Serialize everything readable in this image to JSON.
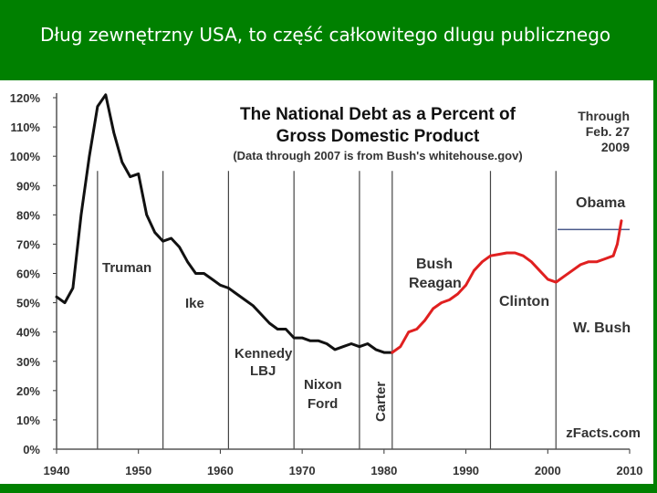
{
  "slide": {
    "title": "Dług zewnętrzny USA, to część całkowitego dlugu publicznego"
  },
  "colors": {
    "background": "#008000",
    "black_series": "#111111",
    "red_series": "#e02020",
    "obama_line": "#4a5a8a"
  },
  "chart_data": {
    "type": "line",
    "title": "The National Debt as a Percent of Gross Domestic Product",
    "subtitle": "(Data through 2007 is from Bush's whitehouse.gov)",
    "through_note": "Through Feb. 27 2009",
    "source": "zFacts.com",
    "xlim": [
      1940,
      2010
    ],
    "ylim": [
      0,
      120
    ],
    "x_ticks": [
      "1940",
      "1950",
      "1960",
      "1970",
      "1980",
      "1990",
      "2000",
      "2010"
    ],
    "y_ticks": [
      "0%",
      "10%",
      "20%",
      "30%",
      "40%",
      "50%",
      "60%",
      "70%",
      "80%",
      "90%",
      "100%",
      "110%",
      "120%"
    ],
    "grid": false,
    "series": [
      {
        "color": "#111111",
        "x": [
          1940,
          1941,
          1942,
          1943,
          1944,
          1945,
          1946,
          1947,
          1948,
          1949,
          1950,
          1951,
          1952,
          1953,
          1954,
          1955,
          1956,
          1957,
          1958,
          1959,
          1960,
          1961,
          1962,
          1963,
          1964,
          1965,
          1966,
          1967,
          1968,
          1969,
          1970,
          1971,
          1972,
          1973,
          1974,
          1975,
          1976,
          1977,
          1978,
          1979,
          1980,
          1981
        ],
        "values": [
          52,
          50,
          55,
          80,
          100,
          117,
          121,
          108,
          98,
          93,
          94,
          80,
          74,
          71,
          72,
          69,
          64,
          60,
          60,
          58,
          56,
          55,
          53,
          51,
          49,
          46,
          43,
          41,
          41,
          38,
          38,
          37,
          37,
          36,
          34,
          35,
          36,
          35,
          36,
          34,
          33,
          33
        ]
      },
      {
        "color": "#e02020",
        "x": [
          1981,
          1982,
          1983,
          1984,
          1985,
          1986,
          1987,
          1988,
          1989,
          1990,
          1991,
          1992,
          1993,
          1994,
          1995,
          1996,
          1997,
          1998,
          1999,
          2000,
          2001,
          2002,
          2003,
          2004,
          2005,
          2006,
          2007,
          2008,
          2008.5,
          2009
        ],
        "values": [
          33,
          35,
          40,
          41,
          44,
          48,
          50,
          51,
          53,
          56,
          61,
          64,
          66,
          66.5,
          67,
          67,
          66,
          64,
          61,
          58,
          57,
          59,
          61,
          63,
          64,
          64,
          65,
          66,
          70,
          78
        ]
      }
    ],
    "presidency_lines": [
      1945,
      1953,
      1961,
      1969,
      1977,
      1981,
      1993,
      2001
    ],
    "obama_ref_y": 75,
    "annotations": {
      "truman": "Truman",
      "ike": "Ike",
      "kennedy": "Kennedy",
      "lbj": "LBJ",
      "nixon": "Nixon",
      "ford": "Ford",
      "carter": "Carter",
      "bush": "Bush",
      "reagan": "Reagan",
      "clinton": "Clinton",
      "wbush": "W. Bush",
      "obama": "Obama"
    }
  }
}
